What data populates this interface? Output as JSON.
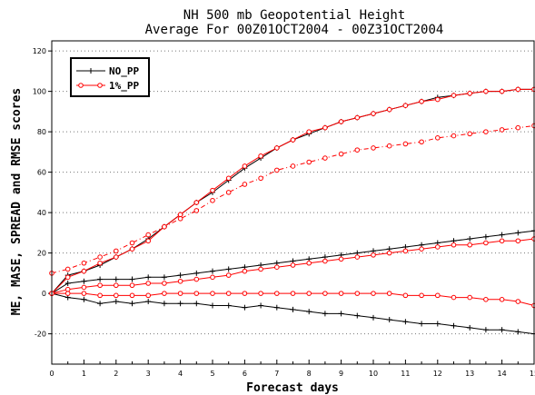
{
  "chart_data": {
    "type": "line",
    "title": "NH 500 mb Geopotential Height",
    "subtitle": "Average For 00Z01OCT2004 - 00Z31OCT2004",
    "xlabel": "Forecast days",
    "ylabel": "ME, MASE, SPREAD and RMSE scores",
    "xlim": [
      0,
      15
    ],
    "ylim": [
      -35,
      125
    ],
    "xticks": [
      0,
      1,
      2,
      3,
      4,
      5,
      6,
      7,
      8,
      9,
      10,
      11,
      12,
      13,
      14,
      15
    ],
    "yticks": [
      -20,
      0,
      20,
      40,
      60,
      80,
      100,
      120
    ],
    "grid": "horizontal dotted",
    "legend": "top-left",
    "x": [
      0,
      0.5,
      1,
      1.5,
      2,
      2.5,
      3,
      3.5,
      4,
      4.5,
      5,
      5.5,
      6,
      6.5,
      7,
      7.5,
      8,
      8.5,
      9,
      9.5,
      10,
      10.5,
      11,
      11.5,
      12,
      12.5,
      13,
      13.5,
      14,
      14.5,
      15
    ],
    "series": [
      {
        "name": "NO_PP",
        "color": "#000000",
        "marker": "plus",
        "linestyle": "solid",
        "curves": [
          [
            0,
            9,
            11,
            14,
            18,
            22,
            27,
            33,
            39,
            45,
            50,
            56,
            62,
            67,
            72,
            76,
            79,
            82,
            85,
            87,
            89,
            91,
            93,
            95,
            97,
            98,
            99,
            100,
            100,
            101,
            101
          ],
          [
            0,
            5,
            6,
            7,
            7,
            7,
            8,
            8,
            9,
            10,
            11,
            12,
            13,
            14,
            15,
            16,
            17,
            18,
            19,
            20,
            21,
            22,
            23,
            24,
            25,
            26,
            27,
            28,
            29,
            30,
            31
          ],
          [
            0,
            -2,
            -3,
            -5,
            -4,
            -5,
            -4,
            -5,
            -5,
            -5,
            -6,
            -6,
            -7,
            -6,
            -7,
            -8,
            -9,
            -10,
            -10,
            -11,
            -12,
            -13,
            -14,
            -15,
            -15,
            -16,
            -17,
            -18,
            -18,
            -19,
            -20
          ]
        ]
      },
      {
        "name": "1%_PP",
        "color": "#ff0000",
        "marker": "circle",
        "linestyle": "solid",
        "curves": [
          [
            0,
            8,
            11,
            15,
            18,
            22,
            26,
            33,
            39,
            45,
            51,
            57,
            63,
            68,
            72,
            76,
            80,
            82,
            85,
            87,
            89,
            91,
            93,
            95,
            96,
            98,
            99,
            100,
            100,
            101,
            101
          ],
          [
            0,
            2,
            3,
            4,
            4,
            4,
            5,
            5,
            6,
            7,
            8,
            9,
            11,
            12,
            13,
            14,
            15,
            16,
            17,
            18,
            19,
            20,
            21,
            22,
            23,
            24,
            24,
            25,
            26,
            26,
            27
          ],
          [
            0,
            0,
            0,
            -1,
            -1,
            -1,
            -1,
            0,
            0,
            0,
            0,
            0,
            0,
            0,
            0,
            0,
            0,
            0,
            0,
            0,
            0,
            0,
            -1,
            -1,
            -1,
            -2,
            -2,
            -3,
            -3,
            -4,
            -6
          ]
        ]
      },
      {
        "name": "1%_PP",
        "color": "#ff0000",
        "marker": "circle",
        "linestyle": "dashdot",
        "curves": [
          [
            10,
            12,
            15,
            18,
            21,
            25,
            29,
            33,
            37,
            41,
            46,
            50,
            54,
            57,
            61,
            63,
            65,
            67,
            69,
            71,
            72,
            73,
            74,
            75,
            77,
            78,
            79,
            80,
            81,
            82,
            83
          ]
        ]
      }
    ]
  }
}
